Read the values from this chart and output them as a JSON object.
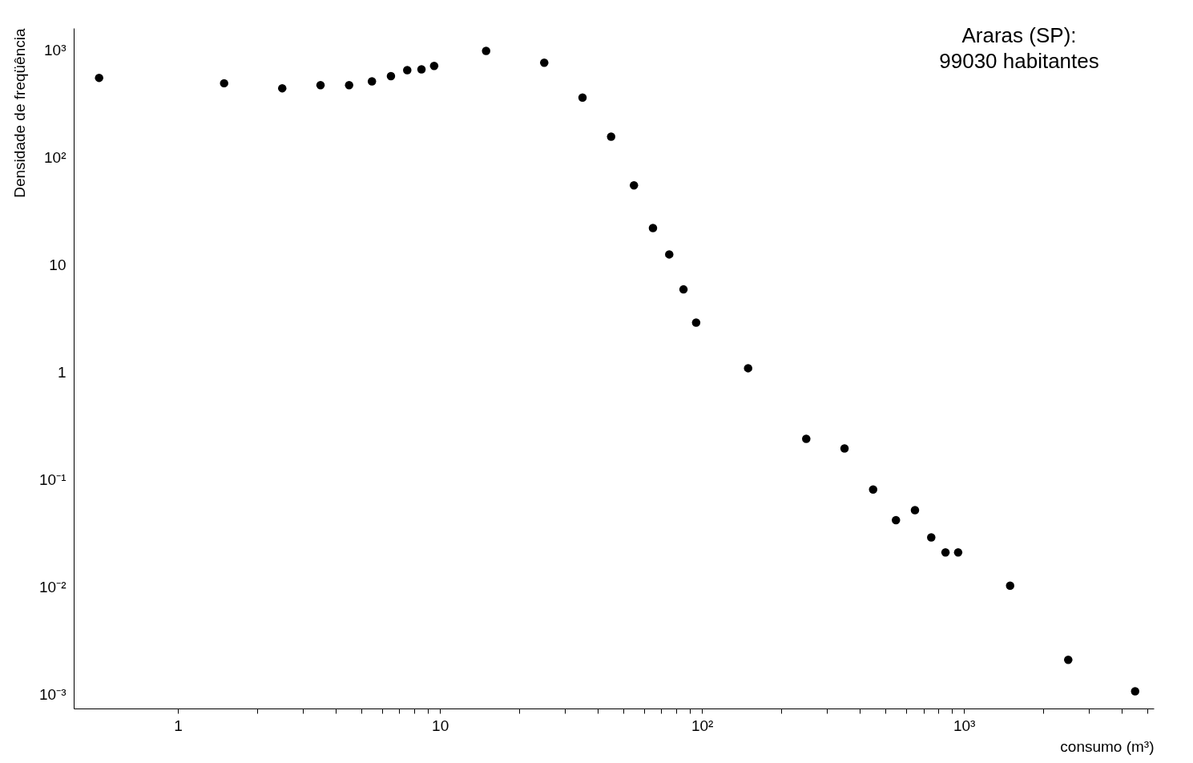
{
  "chart_data": {
    "type": "scatter",
    "xlabel": "consumo (m³)",
    "ylabel": "Densidade de freqüência",
    "annotations": [
      "Araras (SP):",
      "99030 habitantes"
    ],
    "log": "xy",
    "grid": false,
    "marker": "circle",
    "legend": false,
    "xlim": [
      0.4,
      5300
    ],
    "ylim": [
      0.00074,
      1600
    ],
    "xticks": [
      1,
      {
        "value": 2,
        "label": null
      },
      {
        "value": 3,
        "label": null
      },
      {
        "value": 4,
        "label": null
      },
      {
        "value": 5,
        "label": null
      },
      {
        "value": 6,
        "label": null
      },
      {
        "value": 7,
        "label": null
      },
      {
        "value": 8,
        "label": null
      },
      {
        "value": 9,
        "label": null
      },
      10,
      {
        "value": 20,
        "label": null
      },
      {
        "value": 30,
        "label": null
      },
      {
        "value": 40,
        "label": null
      },
      {
        "value": 50,
        "label": null
      },
      {
        "value": 60,
        "label": null
      },
      {
        "value": 70,
        "label": null
      },
      {
        "value": 80,
        "label": null
      },
      {
        "value": 90,
        "label": null
      },
      {
        "value": 100,
        "label": "10²"
      },
      {
        "value": 200,
        "label": null
      },
      {
        "value": 300,
        "label": null
      },
      {
        "value": 400,
        "label": null
      },
      {
        "value": 500,
        "label": null
      },
      {
        "value": 600,
        "label": null
      },
      {
        "value": 700,
        "label": null
      },
      {
        "value": 800,
        "label": null
      },
      {
        "value": 900,
        "label": null
      },
      {
        "value": 1000,
        "label": "10³"
      },
      {
        "value": 2000,
        "label": null
      },
      {
        "value": 3000,
        "label": null
      },
      {
        "value": 4000,
        "label": null
      },
      {
        "value": 5000,
        "label": null
      }
    ],
    "yticks": [
      {
        "value": 0.001,
        "label": "10⁻³"
      },
      {
        "value": 0.01,
        "label": "10⁻²"
      },
      {
        "value": 0.1,
        "label": "10⁻¹"
      },
      1,
      10,
      {
        "value": 100,
        "label": "10²"
      },
      {
        "value": 1000,
        "label": "10³"
      }
    ],
    "series": [
      {
        "color": "#000000",
        "x": [
          0.5,
          1.5,
          2.5,
          3.5,
          4.5,
          5.5,
          6.5,
          7.5,
          8.5,
          9.5,
          15,
          25,
          35,
          45,
          55,
          65,
          75,
          85,
          95,
          150,
          250,
          350,
          450,
          550,
          650,
          750,
          850,
          950,
          1500,
          2500,
          4500
        ],
        "values": [
          550,
          490,
          440,
          470,
          470,
          510,
          570,
          650,
          660,
          710,
          980,
          760,
          360,
          156,
          55,
          22,
          12.5,
          5.9,
          2.9,
          1.09,
          0.24,
          0.195,
          0.081,
          0.042,
          0.052,
          0.029,
          0.021,
          0.021,
          0.0103,
          0.0021,
          0.00107
        ]
      }
    ]
  }
}
